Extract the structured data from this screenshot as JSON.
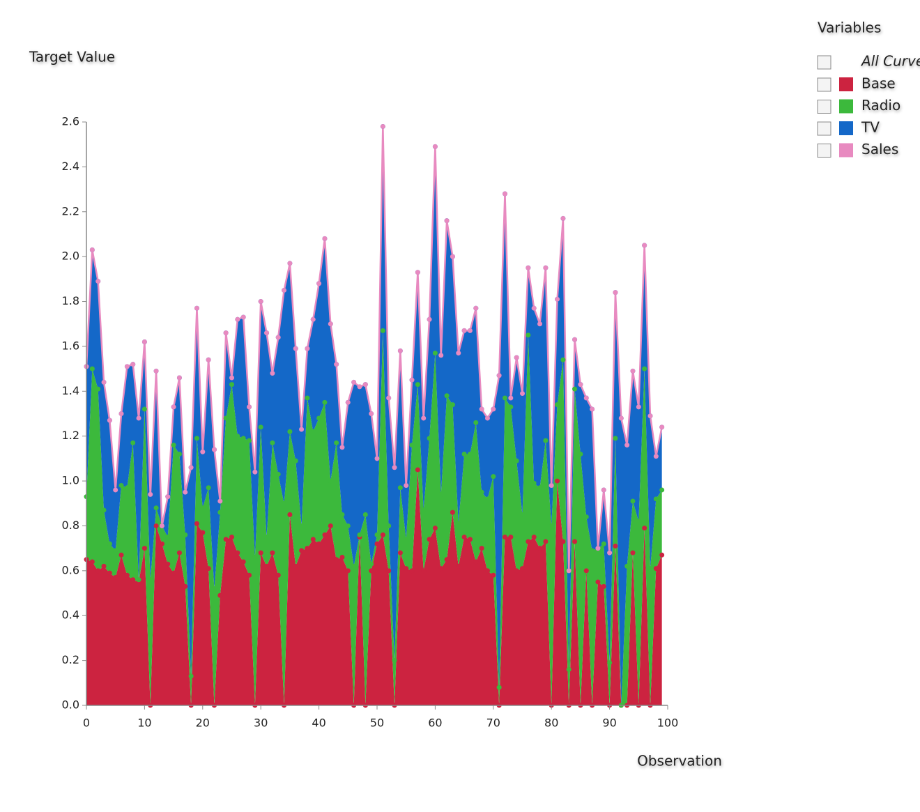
{
  "chart_data": {
    "type": "stacked-area",
    "x_label": "Observation",
    "y_label": "Target Value",
    "legend_title": "Variables",
    "legend_all": "All Curves",
    "xlim": [
      0,
      100
    ],
    "xticks": [
      0,
      10,
      20,
      30,
      40,
      50,
      60,
      70,
      80,
      90,
      100
    ],
    "ylim": [
      0,
      2.6
    ],
    "yticks": [
      {
        "value": 0,
        "label": "0.0"
      },
      0.2,
      0.4,
      0.6,
      0.8,
      {
        "value": 1,
        "label": "1.0"
      },
      1.2,
      1.4,
      1.6,
      1.8,
      {
        "value": 2,
        "label": "2.0"
      },
      2.2,
      2.4,
      2.6
    ],
    "legend": "top-right",
    "x": [
      0,
      1,
      2,
      3,
      4,
      5,
      6,
      7,
      8,
      9,
      10,
      11,
      12,
      13,
      14,
      15,
      16,
      17,
      18,
      19,
      20,
      21,
      22,
      23,
      24,
      25,
      26,
      27,
      28,
      29,
      30,
      31,
      32,
      33,
      34,
      35,
      36,
      37,
      38,
      39,
      40,
      41,
      42,
      43,
      44,
      45,
      46,
      47,
      48,
      49,
      50,
      51,
      52,
      53,
      54,
      55,
      56,
      57,
      58,
      59,
      60,
      61,
      62,
      63,
      64,
      65,
      66,
      67,
      68,
      69,
      70,
      71,
      72,
      73,
      74,
      75,
      76,
      77,
      78,
      79,
      80,
      81,
      82,
      83,
      84,
      85,
      86,
      87,
      88,
      89,
      90,
      91,
      92,
      93,
      94,
      95,
      96,
      97,
      98,
      99
    ],
    "series": [
      {
        "name": "Base",
        "color": "#cc2340",
        "stack": true,
        "values": [
          0.65,
          0.64,
          0.6,
          0.62,
          0.59,
          0.57,
          0.67,
          0.58,
          0.56,
          0.55,
          0.7,
          0.0,
          0.8,
          0.72,
          0.63,
          0.59,
          0.68,
          0.53,
          0.0,
          0.81,
          0.77,
          0.61,
          0.0,
          0.49,
          0.74,
          0.75,
          0.68,
          0.64,
          0.58,
          0.0,
          0.68,
          0.62,
          0.68,
          0.58,
          0.0,
          0.85,
          0.62,
          0.69,
          0.7,
          0.74,
          0.72,
          0.76,
          0.8,
          0.65,
          0.66,
          0.6,
          0.0,
          0.75,
          0.0,
          0.6,
          0.72,
          0.76,
          0.6,
          0.0,
          0.68,
          0.61,
          0.6,
          1.05,
          0.6,
          0.74,
          0.79,
          0.61,
          0.65,
          0.86,
          0.62,
          0.75,
          0.74,
          0.64,
          0.7,
          0.6,
          0.58,
          0.0,
          0.75,
          0.75,
          0.6,
          0.61,
          0.73,
          0.75,
          0.7,
          0.73,
          0.0,
          1.0,
          0.73,
          0.0,
          0.73,
          0.0,
          0.6,
          0.0,
          0.55,
          0.53,
          0.0,
          0.71,
          0.0,
          0.0,
          0.68,
          0.0,
          0.79,
          0.0,
          0.61,
          0.67
        ]
      },
      {
        "name": "Radio",
        "color": "#3cb93c",
        "stack": true,
        "values": [
          0.28,
          0.86,
          0.81,
          0.25,
          0.13,
          0.12,
          0.31,
          0.39,
          0.61,
          0.01,
          0.62,
          0.56,
          0.08,
          0.08,
          0.12,
          0.57,
          0.44,
          0.23,
          0.13,
          0.38,
          0.11,
          0.36,
          0.52,
          0.37,
          0.54,
          0.68,
          0.52,
          0.55,
          0.6,
          0.66,
          0.56,
          0.13,
          0.49,
          0.45,
          0.9,
          0.37,
          0.47,
          0.11,
          0.67,
          0.48,
          0.56,
          0.59,
          0.2,
          0.52,
          0.19,
          0.2,
          0.62,
          0.01,
          0.85,
          0.03,
          0.04,
          0.91,
          0.2,
          0.2,
          0.29,
          0.13,
          0.56,
          0.38,
          0.27,
          0.45,
          0.78,
          0.33,
          0.73,
          0.48,
          0.19,
          0.37,
          0.38,
          0.62,
          0.25,
          0.32,
          0.44,
          0.08,
          0.62,
          0.58,
          0.49,
          0.24,
          0.92,
          0.24,
          0.27,
          0.45,
          0.8,
          0.34,
          0.81,
          0.16,
          0.68,
          1.12,
          0.24,
          0.69,
          0.15,
          0.19,
          0.19,
          0.48,
          0.0,
          0.62,
          0.23,
          0.82,
          0.71,
          0.61,
          0.31,
          0.29
        ]
      },
      {
        "name": "TV",
        "color": "#1468c8",
        "stack": true,
        "values": [
          0.58,
          0.53,
          0.48,
          0.57,
          0.55,
          0.27,
          0.32,
          0.54,
          0.35,
          0.72,
          0.3,
          0.38,
          0.61,
          0.0,
          0.18,
          0.17,
          0.34,
          0.19,
          0.93,
          0.58,
          0.25,
          0.57,
          0.62,
          0.05,
          0.38,
          0.03,
          0.52,
          0.54,
          0.15,
          0.38,
          0.56,
          0.91,
          0.31,
          0.61,
          0.95,
          0.75,
          0.5,
          0.43,
          0.22,
          0.5,
          0.6,
          0.73,
          0.7,
          0.35,
          0.3,
          0.55,
          0.82,
          0.66,
          0.58,
          0.67,
          0.34,
          0.91,
          0.57,
          0.86,
          0.61,
          0.24,
          0.29,
          0.5,
          0.41,
          0.53,
          0.92,
          0.62,
          0.78,
          0.66,
          0.76,
          0.55,
          0.55,
          0.51,
          0.37,
          0.36,
          0.3,
          1.39,
          0.91,
          0.04,
          0.46,
          0.54,
          0.3,
          0.78,
          0.73,
          0.77,
          0.18,
          0.47,
          0.63,
          0.44,
          0.22,
          0.31,
          0.53,
          0.63,
          0.0,
          0.24,
          0.49,
          0.65,
          1.28,
          0.54,
          0.58,
          0.51,
          0.55,
          0.68,
          0.19,
          0.28
        ]
      },
      {
        "name": "Sales",
        "color": "#e88ac0",
        "stack": false,
        "values": [
          1.51,
          2.03,
          1.89,
          1.44,
          1.27,
          0.96,
          1.3,
          1.51,
          1.52,
          1.28,
          1.62,
          0.94,
          1.49,
          0.8,
          0.93,
          1.33,
          1.46,
          0.95,
          1.06,
          1.77,
          1.13,
          1.54,
          1.14,
          0.91,
          1.66,
          1.46,
          1.72,
          1.73,
          1.33,
          1.04,
          1.8,
          1.66,
          1.48,
          1.64,
          1.85,
          1.97,
          1.59,
          1.23,
          1.59,
          1.72,
          1.88,
          2.08,
          1.7,
          1.52,
          1.15,
          1.35,
          1.44,
          1.42,
          1.43,
          1.3,
          1.1,
          2.58,
          1.37,
          1.06,
          1.58,
          0.98,
          1.45,
          1.93,
          1.28,
          1.72,
          2.49,
          1.56,
          2.16,
          2.0,
          1.57,
          1.67,
          1.67,
          1.77,
          1.32,
          1.28,
          1.32,
          1.47,
          2.28,
          1.37,
          1.55,
          1.39,
          1.95,
          1.77,
          1.7,
          1.95,
          0.98,
          1.81,
          2.17,
          0.6,
          1.63,
          1.43,
          1.37,
          1.32,
          0.7,
          0.96,
          0.68,
          1.84,
          1.28,
          1.16,
          1.49,
          1.33,
          2.05,
          1.29,
          1.11,
          1.24
        ]
      }
    ]
  }
}
